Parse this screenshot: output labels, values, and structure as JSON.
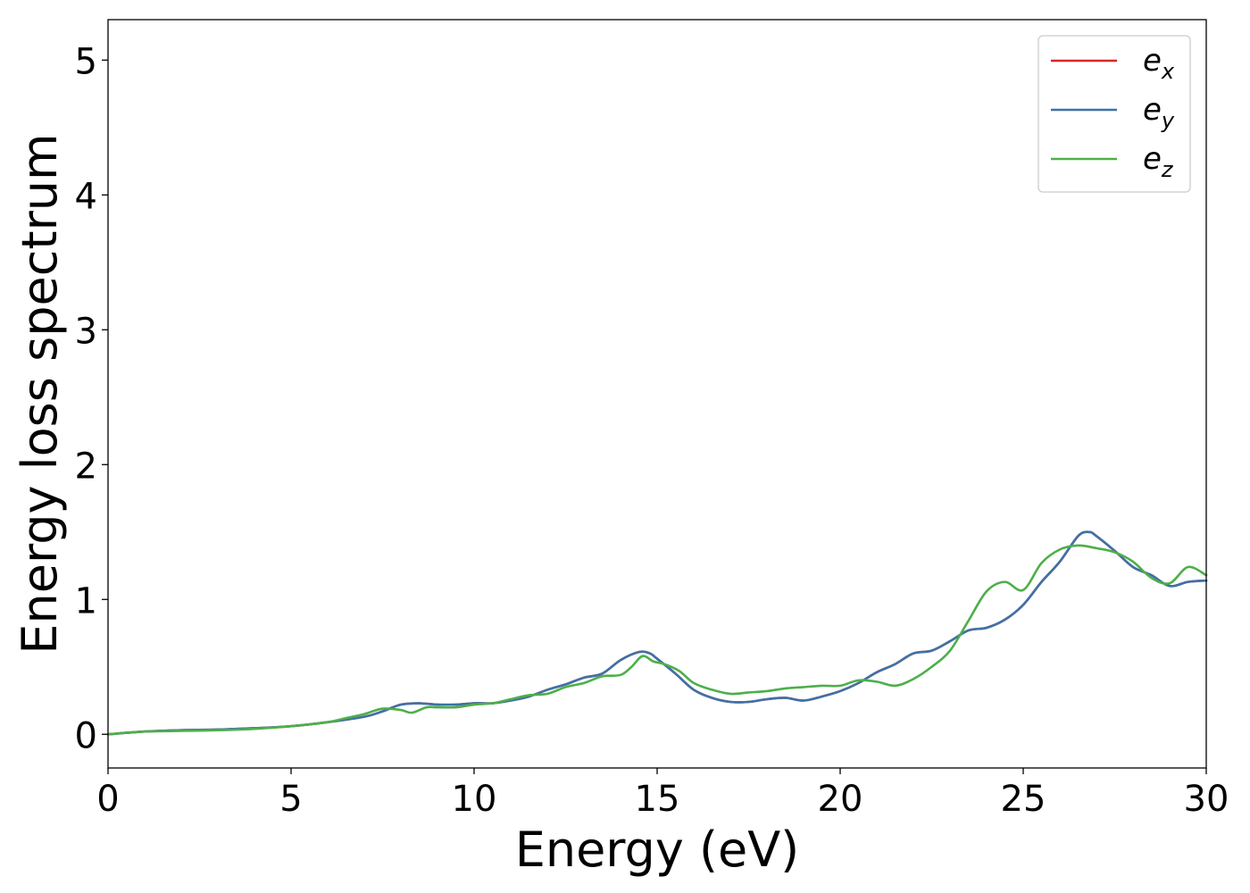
{
  "chart_data": {
    "type": "line",
    "title": "",
    "xlabel": "Energy (eV)",
    "ylabel": "Energy loss spectrum",
    "xlim": [
      0,
      30
    ],
    "ylim": [
      -0.25,
      5.3
    ],
    "xticks": [
      0,
      5,
      10,
      15,
      20,
      25,
      30
    ],
    "yticks": [
      0,
      1,
      2,
      3,
      4,
      5
    ],
    "xtick_labels": [
      "0",
      "5",
      "10",
      "15",
      "20",
      "25",
      "30"
    ],
    "ytick_labels": [
      "0",
      "1",
      "2",
      "3",
      "4",
      "5"
    ],
    "grid": false,
    "legend_position": "top-right",
    "series": [
      {
        "name": "e_x",
        "legend_base": "e",
        "legend_sub": "x",
        "color": "#d62728",
        "x": [
          0,
          1,
          2,
          3,
          4,
          5,
          6,
          7,
          7.5,
          8,
          8.5,
          9,
          9.5,
          10,
          10.5,
          11,
          11.5,
          12,
          12.5,
          13,
          13.5,
          14,
          14.5,
          14.8,
          15,
          15.5,
          16,
          16.5,
          17,
          17.5,
          18,
          18.5,
          19,
          19.5,
          20,
          20.5,
          21,
          21.5,
          22,
          22.5,
          23,
          23.5,
          24,
          24.5,
          25,
          25.5,
          26,
          26.5,
          26.8,
          27,
          27.5,
          28,
          28.5,
          29,
          29.5,
          30
        ],
        "y": [
          0.0,
          0.02,
          0.03,
          0.035,
          0.045,
          0.06,
          0.09,
          0.13,
          0.17,
          0.22,
          0.23,
          0.22,
          0.22,
          0.23,
          0.23,
          0.25,
          0.28,
          0.33,
          0.37,
          0.42,
          0.45,
          0.55,
          0.61,
          0.6,
          0.56,
          0.45,
          0.33,
          0.27,
          0.24,
          0.24,
          0.26,
          0.27,
          0.25,
          0.28,
          0.32,
          0.38,
          0.46,
          0.52,
          0.6,
          0.62,
          0.69,
          0.77,
          0.79,
          0.85,
          0.96,
          1.13,
          1.28,
          1.47,
          1.5,
          1.47,
          1.36,
          1.24,
          1.18,
          1.1,
          1.13,
          1.14
        ]
      },
      {
        "name": "e_y",
        "legend_base": "e",
        "legend_sub": "y",
        "color": "#3d72a8",
        "x": [
          0,
          1,
          2,
          3,
          4,
          5,
          6,
          7,
          7.5,
          8,
          8.5,
          9,
          9.5,
          10,
          10.5,
          11,
          11.5,
          12,
          12.5,
          13,
          13.5,
          14,
          14.5,
          14.8,
          15,
          15.5,
          16,
          16.5,
          17,
          17.5,
          18,
          18.5,
          19,
          19.5,
          20,
          20.5,
          21,
          21.5,
          22,
          22.5,
          23,
          23.5,
          24,
          24.5,
          25,
          25.5,
          26,
          26.5,
          26.8,
          27,
          27.5,
          28,
          28.5,
          29,
          29.5,
          30
        ],
        "y": [
          0.0,
          0.02,
          0.03,
          0.035,
          0.045,
          0.06,
          0.09,
          0.13,
          0.17,
          0.22,
          0.23,
          0.22,
          0.22,
          0.23,
          0.23,
          0.25,
          0.28,
          0.33,
          0.37,
          0.42,
          0.45,
          0.55,
          0.61,
          0.6,
          0.56,
          0.45,
          0.33,
          0.27,
          0.24,
          0.24,
          0.26,
          0.27,
          0.25,
          0.28,
          0.32,
          0.38,
          0.46,
          0.52,
          0.6,
          0.62,
          0.69,
          0.77,
          0.79,
          0.85,
          0.96,
          1.13,
          1.28,
          1.47,
          1.5,
          1.47,
          1.36,
          1.24,
          1.18,
          1.1,
          1.13,
          1.14
        ]
      },
      {
        "name": "e_z",
        "legend_base": "e",
        "legend_sub": "z",
        "color": "#4daf4a",
        "x": [
          0,
          1,
          2,
          3,
          4,
          5,
          6,
          6.5,
          7,
          7.5,
          8,
          8.3,
          8.7,
          9,
          9.5,
          10,
          10.5,
          11,
          11.5,
          12,
          12.5,
          13,
          13.5,
          14,
          14.3,
          14.6,
          14.9,
          15.2,
          15.6,
          16,
          16.5,
          17,
          17.5,
          18,
          18.5,
          19,
          19.5,
          20,
          20.5,
          21,
          21.5,
          22,
          22.5,
          23,
          23.5,
          24,
          24.5,
          25,
          25.5,
          26,
          26.5,
          27,
          27.5,
          28,
          28.5,
          29,
          29.5,
          30
        ],
        "y": [
          0.0,
          0.02,
          0.025,
          0.03,
          0.04,
          0.06,
          0.09,
          0.12,
          0.15,
          0.19,
          0.18,
          0.16,
          0.2,
          0.2,
          0.2,
          0.22,
          0.23,
          0.26,
          0.29,
          0.3,
          0.35,
          0.38,
          0.43,
          0.44,
          0.5,
          0.58,
          0.54,
          0.52,
          0.47,
          0.38,
          0.33,
          0.3,
          0.31,
          0.32,
          0.34,
          0.35,
          0.36,
          0.36,
          0.4,
          0.39,
          0.36,
          0.41,
          0.5,
          0.62,
          0.84,
          1.06,
          1.13,
          1.07,
          1.27,
          1.37,
          1.4,
          1.38,
          1.35,
          1.28,
          1.16,
          1.12,
          1.24,
          1.18
        ]
      }
    ]
  }
}
